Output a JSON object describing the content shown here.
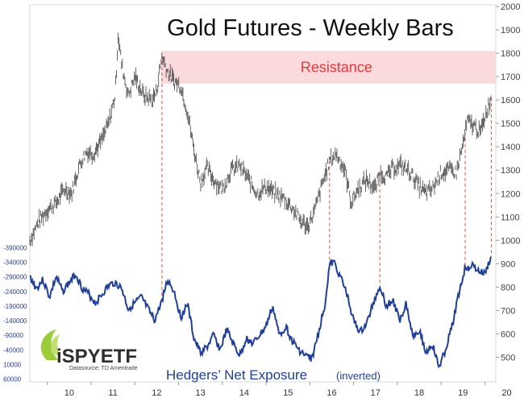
{
  "chart_data": [
    {
      "type": "bar",
      "title": "Gold Futures - Weekly Bars",
      "xlabel": "",
      "ylabel": "",
      "x_range": [
        2009.6,
        2020.25
      ],
      "ylim": [
        450,
        2000
      ],
      "yticks": [
        "2000",
        "1900",
        "1800",
        "1700",
        "1600",
        "1500",
        "1400",
        "1300",
        "1200",
        "1100",
        "1000",
        "900",
        "800",
        "700",
        "600",
        "500"
      ],
      "xticks": [
        "10",
        "11",
        "12",
        "13",
        "14",
        "15",
        "16",
        "17",
        "18",
        "19",
        "20"
      ],
      "annotations": [
        {
          "text": "Resistance",
          "y_range": [
            1670,
            1810
          ],
          "x_range": [
            2012.6,
            2020.25
          ],
          "color": "#fadadd"
        }
      ],
      "series": [
        {
          "color": "#555555",
          "x": [
            2009.6,
            2009.8,
            2010.0,
            2010.2,
            2010.4,
            2010.55,
            2010.75,
            2010.9,
            2011.05,
            2011.25,
            2011.4,
            2011.55,
            2011.62,
            2011.7,
            2011.85,
            2012.0,
            2012.2,
            2012.4,
            2012.5,
            2012.62,
            2012.75,
            2012.9,
            2013.05,
            2013.2,
            2013.35,
            2013.5,
            2013.65,
            2013.8,
            2014.0,
            2014.2,
            2014.4,
            2014.6,
            2014.8,
            2015.0,
            2015.2,
            2015.4,
            2015.6,
            2015.8,
            2015.95,
            2016.1,
            2016.3,
            2016.45,
            2016.6,
            2016.8,
            2016.95,
            2017.1,
            2017.3,
            2017.5,
            2017.6,
            2017.75,
            2017.9,
            2018.1,
            2018.3,
            2018.5,
            2018.65,
            2018.8,
            2019.0,
            2019.2,
            2019.35,
            2019.5,
            2019.6,
            2019.75,
            2019.9,
            2020.05,
            2020.15
          ],
          "values": [
            1000,
            1080,
            1130,
            1160,
            1220,
            1200,
            1330,
            1380,
            1370,
            1430,
            1500,
            1620,
            1880,
            1750,
            1620,
            1700,
            1620,
            1600,
            1640,
            1790,
            1720,
            1680,
            1660,
            1550,
            1390,
            1250,
            1310,
            1260,
            1220,
            1300,
            1320,
            1260,
            1200,
            1230,
            1200,
            1180,
            1140,
            1080,
            1060,
            1120,
            1250,
            1340,
            1370,
            1300,
            1160,
            1220,
            1260,
            1220,
            1290,
            1270,
            1310,
            1320,
            1290,
            1230,
            1200,
            1220,
            1290,
            1300,
            1290,
            1410,
            1510,
            1490,
            1460,
            1560,
            1610
          ]
        }
      ]
    },
    {
      "type": "line",
      "title": "Hedgers’ Net Exposure",
      "subtitle": "(inverted)",
      "xlabel": "",
      "ylabel": "",
      "x_range": [
        2009.6,
        2020.25
      ],
      "ylim": [
        -410000,
        80000
      ],
      "yticks": [
        "-390000",
        "-340000",
        "-290000",
        "-240000",
        "-190000",
        "-140000",
        "-90000",
        "-40000",
        "10000",
        "60000"
      ],
      "series": [
        {
          "color": "#1f3f9a",
          "x": [
            2009.6,
            2009.75,
            2009.9,
            2010.05,
            2010.2,
            2010.35,
            2010.5,
            2010.65,
            2010.8,
            2010.95,
            2011.1,
            2011.25,
            2011.4,
            2011.55,
            2011.7,
            2011.85,
            2012.0,
            2012.15,
            2012.3,
            2012.45,
            2012.6,
            2012.75,
            2012.9,
            2013.05,
            2013.2,
            2013.35,
            2013.5,
            2013.65,
            2013.8,
            2013.95,
            2014.1,
            2014.25,
            2014.4,
            2014.55,
            2014.7,
            2014.85,
            2015.0,
            2015.15,
            2015.3,
            2015.45,
            2015.6,
            2015.75,
            2015.9,
            2016.05,
            2016.2,
            2016.35,
            2016.45,
            2016.55,
            2016.7,
            2016.85,
            2017.0,
            2017.15,
            2017.3,
            2017.45,
            2017.6,
            2017.75,
            2017.9,
            2018.05,
            2018.2,
            2018.35,
            2018.5,
            2018.65,
            2018.8,
            2018.95,
            2019.1,
            2019.25,
            2019.4,
            2019.55,
            2019.7,
            2019.85,
            2020.0,
            2020.15
          ],
          "values": [
            -290000,
            -250000,
            -280000,
            -220000,
            -290000,
            -240000,
            -270000,
            -300000,
            -250000,
            -230000,
            -200000,
            -230000,
            -260000,
            -270000,
            -250000,
            -180000,
            -200000,
            -220000,
            -180000,
            -140000,
            -200000,
            -280000,
            -240000,
            -150000,
            -200000,
            -80000,
            -30000,
            -50000,
            -90000,
            -40000,
            -110000,
            -60000,
            -20000,
            -80000,
            -60000,
            -90000,
            -120000,
            -190000,
            -90000,
            -120000,
            -70000,
            -40000,
            -20000,
            -10000,
            -100000,
            -200000,
            -330000,
            -340000,
            -290000,
            -230000,
            -140000,
            -100000,
            -130000,
            -200000,
            -260000,
            -190000,
            -210000,
            -140000,
            -200000,
            -90000,
            -110000,
            -30000,
            -60000,
            20000,
            -40000,
            -120000,
            -230000,
            -320000,
            -330000,
            -310000,
            -300000,
            -360000
          ]
        }
      ]
    }
  ],
  "labels": {
    "title": "Gold Futures - Weekly Bars",
    "resistance": "Resistance",
    "hedgers": "Hedgers’ Net Exposure",
    "inverted": "(inverted)"
  },
  "logo": {
    "main": "iSPYETF",
    "sub": "Datasource: TD Ameritrade"
  },
  "colors": {
    "gold_bars": "#555555",
    "hedgers_line": "#1f3f9a",
    "resistance_band": "#fadadd",
    "resistance_text": "#e23a3a",
    "marker_lines": "#e05050",
    "logo_green": "#9ccc3a"
  },
  "peak_markers": [
    2012.62,
    2016.45,
    2017.6,
    2019.55,
    2020.15
  ]
}
